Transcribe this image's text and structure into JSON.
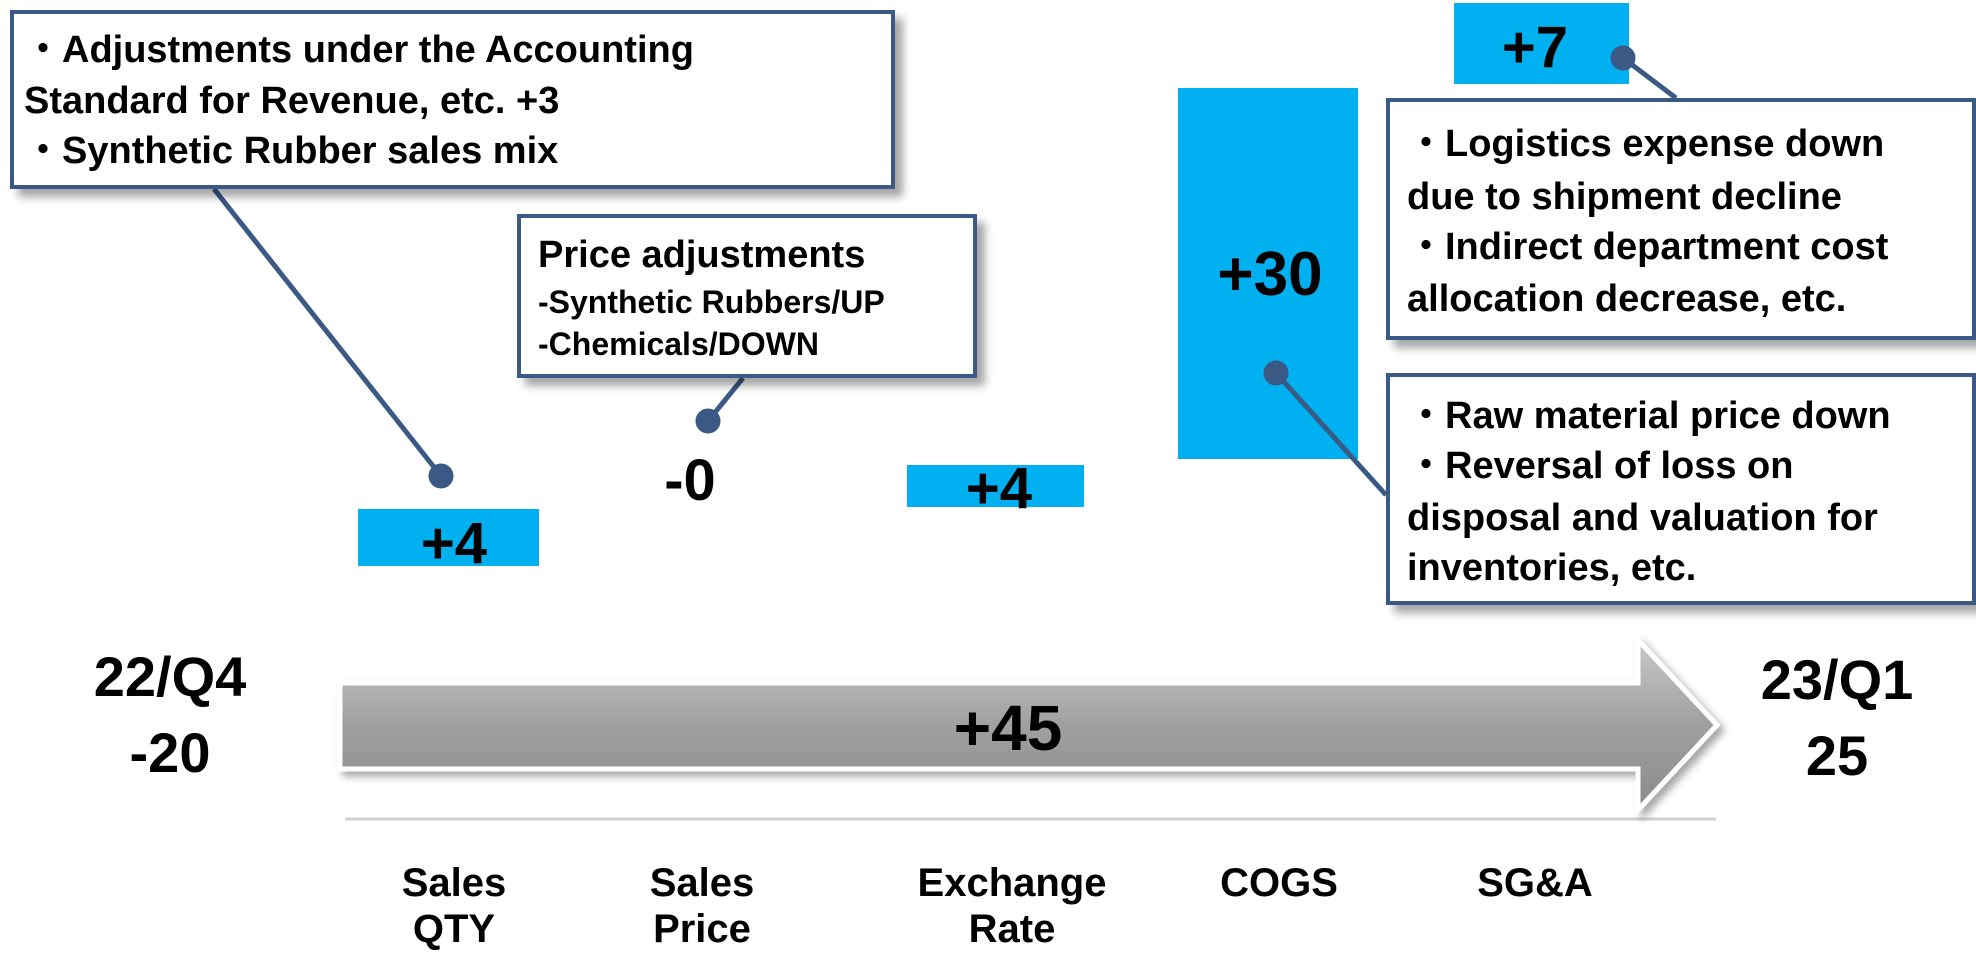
{
  "chart_data": {
    "type": "waterfall",
    "color": "#00b0f0",
    "start": {
      "label": "22/Q4",
      "value": -20
    },
    "end": {
      "label": "23/Q1",
      "value": 25
    },
    "total_change": {
      "value": 45,
      "label": "+45"
    },
    "categories": [
      "Sales QTY",
      "Sales Price",
      "Exchange Rate",
      "COGS",
      "SG&A"
    ],
    "values": [
      4,
      0,
      4,
      30,
      7
    ],
    "value_labels": [
      "+4",
      "-0",
      "+4",
      "+30",
      "+7"
    ],
    "annotations": [
      {
        "lines": [
          "・Adjustments under the Accounting",
          "Standard for Revenue, etc.  +3",
          "・Synthetic Rubber sales mix"
        ]
      },
      {
        "lines": [
          "Price adjustments",
          "-Synthetic Rubbers/UP",
          "-Chemicals/DOWN"
        ]
      },
      {
        "lines": [
          "・Logistics expense down",
          "due to shipment decline",
          "・Indirect department cost",
          "allocation decrease, etc."
        ]
      },
      {
        "lines": [
          "・Raw material price down",
          "・Reversal of loss on",
          "disposal and valuation for",
          "inventories, etc."
        ]
      }
    ]
  }
}
